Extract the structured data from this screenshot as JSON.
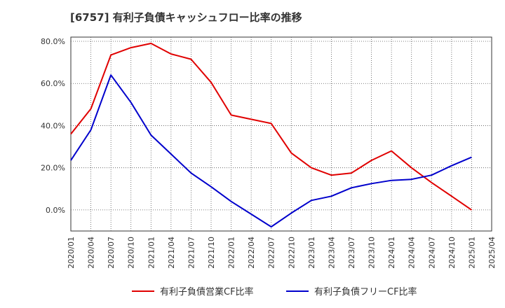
{
  "chart_data": {
    "type": "line",
    "title": "[6757]  有利子負債キャッシュフロー比率の推移",
    "x": [
      "2020/01",
      "2020/04",
      "2020/07",
      "2020/10",
      "2021/01",
      "2021/04",
      "2021/07",
      "2021/10",
      "2022/01",
      "2022/04",
      "2022/07",
      "2022/10",
      "2023/01",
      "2023/04",
      "2023/07",
      "2023/10",
      "2024/01",
      "2024/04",
      "2024/07",
      "2024/10",
      "2025/01",
      "2025/04"
    ],
    "y_ticks": [
      "80.0%",
      "60.0%",
      "40.0%",
      "20.0%",
      "0.0%"
    ],
    "ylim": [
      -10,
      82
    ],
    "grid": true,
    "legend_position": "bottom",
    "series": [
      {
        "name": "有利子負債営業CF比率",
        "color": "#e00000",
        "values": [
          36.0,
          48.0,
          73.5,
          77.0,
          79.0,
          74.0,
          71.5,
          60.5,
          45.0,
          43.0,
          41.0,
          27.0,
          20.0,
          16.5,
          17.5,
          23.5,
          28.0,
          20.0,
          13.0,
          6.5,
          0.0,
          null
        ]
      },
      {
        "name": "有利子負債フリーCF比率",
        "color": "#0000cc",
        "values": [
          23.5,
          38.0,
          64.0,
          51.0,
          35.5,
          26.5,
          17.5,
          11.0,
          4.0,
          -2.0,
          -8.0,
          -1.5,
          4.5,
          6.5,
          10.5,
          12.5,
          14.0,
          14.5,
          16.5,
          21.0,
          25.0,
          null
        ]
      }
    ]
  }
}
